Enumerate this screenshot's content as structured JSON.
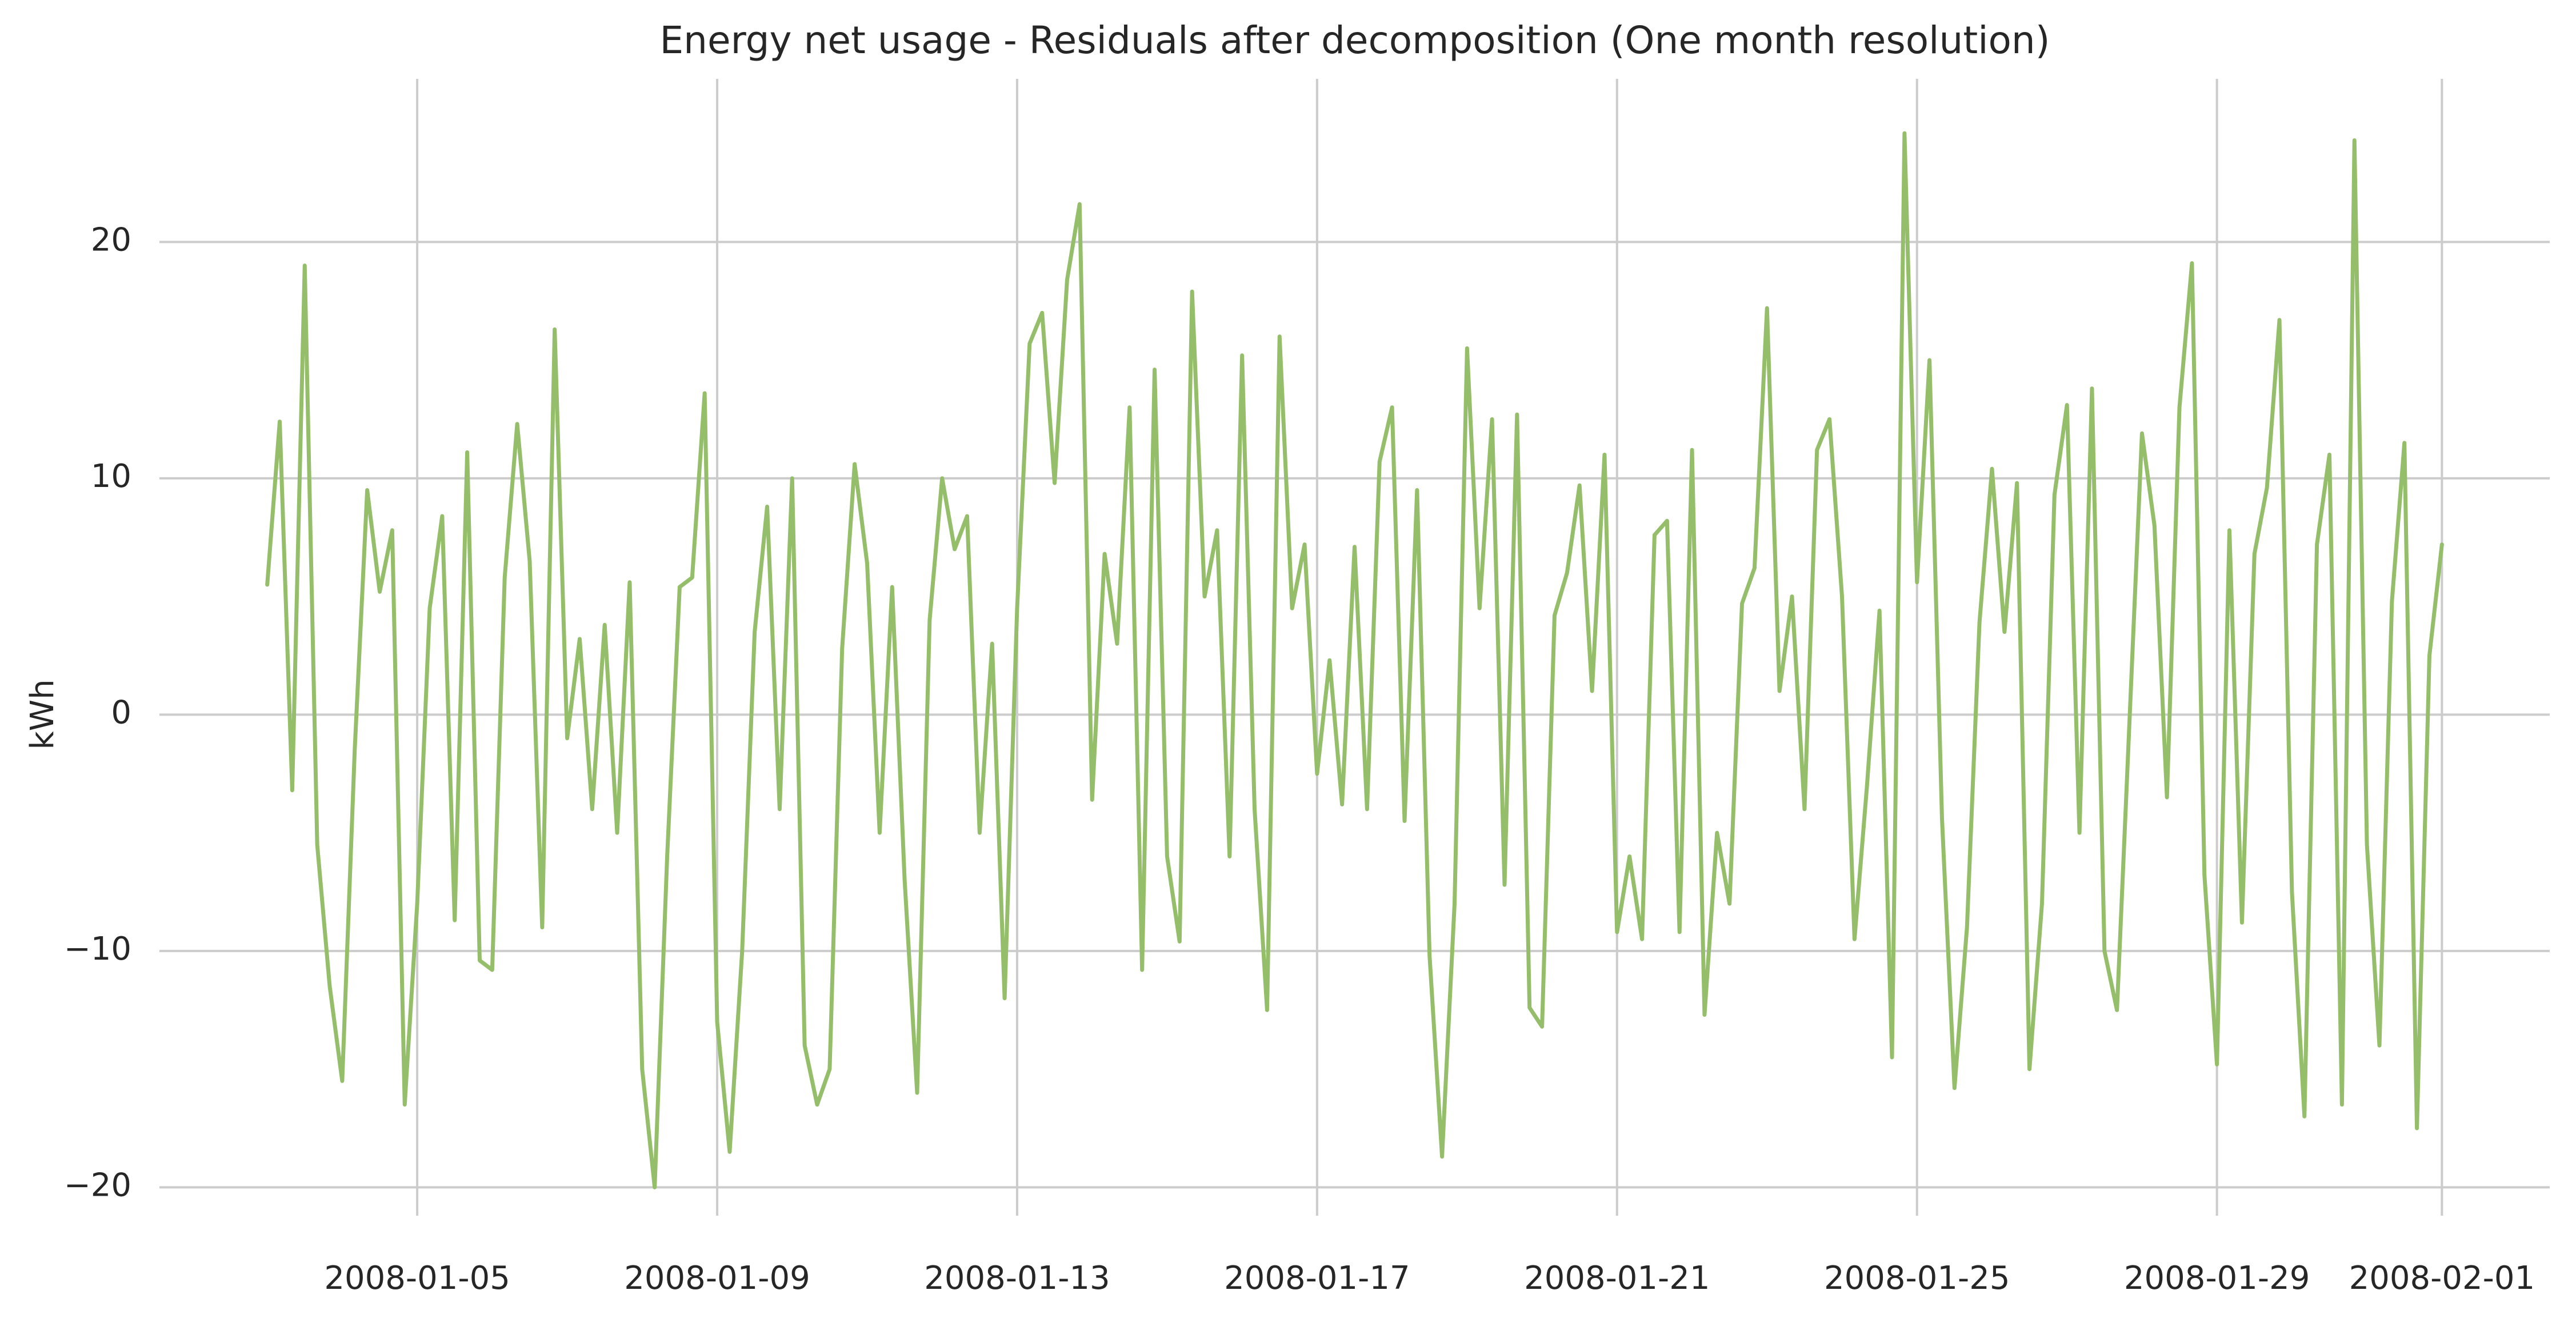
{
  "chart_data": {
    "type": "line",
    "title": "Energy net usage - Residuals after decomposition (One month resolution)",
    "y_label": "kWh",
    "color": "#95be6b",
    "grid": true,
    "xlim": [
      "2008-01-01T13:30",
      "2008-02-02T10:30"
    ],
    "xticks": [
      "2008-01-05",
      "2008-01-09",
      "2008-01-13",
      "2008-01-17",
      "2008-01-21",
      "2008-01-25",
      "2008-01-29",
      "2008-02-01"
    ],
    "ylim": [
      -21.2,
      26.9
    ],
    "yticks": [
      {
        "value": -20,
        "label": "−20"
      },
      {
        "value": -10,
        "label": "−10"
      },
      0,
      10,
      20
    ],
    "x": [
      "2008-01-03T00:00",
      "2008-01-03T04:00",
      "2008-01-03T08:00",
      "2008-01-03T12:00",
      "2008-01-03T16:00",
      "2008-01-03T20:00",
      "2008-01-04T00:00",
      "2008-01-04T04:00",
      "2008-01-04T08:00",
      "2008-01-04T12:00",
      "2008-01-04T16:00",
      "2008-01-04T20:00",
      "2008-01-05T00:00",
      "2008-01-05T04:00",
      "2008-01-05T08:00",
      "2008-01-05T12:00",
      "2008-01-05T16:00",
      "2008-01-05T20:00",
      "2008-01-06T00:00",
      "2008-01-06T04:00",
      "2008-01-06T08:00",
      "2008-01-06T12:00",
      "2008-01-06T16:00",
      "2008-01-06T20:00",
      "2008-01-07T00:00",
      "2008-01-07T04:00",
      "2008-01-07T08:00",
      "2008-01-07T12:00",
      "2008-01-07T16:00",
      "2008-01-07T20:00",
      "2008-01-08T00:00",
      "2008-01-08T04:00",
      "2008-01-08T08:00",
      "2008-01-08T12:00",
      "2008-01-08T16:00",
      "2008-01-08T20:00",
      "2008-01-09T00:00",
      "2008-01-09T04:00",
      "2008-01-09T08:00",
      "2008-01-09T12:00",
      "2008-01-09T16:00",
      "2008-01-09T20:00",
      "2008-01-10T00:00",
      "2008-01-10T04:00",
      "2008-01-10T08:00",
      "2008-01-10T12:00",
      "2008-01-10T16:00",
      "2008-01-10T20:00",
      "2008-01-11T00:00",
      "2008-01-11T04:00",
      "2008-01-11T08:00",
      "2008-01-11T12:00",
      "2008-01-11T16:00",
      "2008-01-11T20:00",
      "2008-01-12T00:00",
      "2008-01-12T04:00",
      "2008-01-12T08:00",
      "2008-01-12T12:00",
      "2008-01-12T16:00",
      "2008-01-12T20:00",
      "2008-01-13T00:00",
      "2008-01-13T04:00",
      "2008-01-13T08:00",
      "2008-01-13T12:00",
      "2008-01-13T16:00",
      "2008-01-13T20:00",
      "2008-01-14T00:00",
      "2008-01-14T04:00",
      "2008-01-14T08:00",
      "2008-01-14T12:00",
      "2008-01-14T16:00",
      "2008-01-14T20:00",
      "2008-01-15T00:00",
      "2008-01-15T04:00",
      "2008-01-15T08:00",
      "2008-01-15T12:00",
      "2008-01-15T16:00",
      "2008-01-15T20:00",
      "2008-01-16T00:00",
      "2008-01-16T04:00",
      "2008-01-16T08:00",
      "2008-01-16T12:00",
      "2008-01-16T16:00",
      "2008-01-16T20:00",
      "2008-01-17T00:00",
      "2008-01-17T04:00",
      "2008-01-17T08:00",
      "2008-01-17T12:00",
      "2008-01-17T16:00",
      "2008-01-17T20:00",
      "2008-01-18T00:00",
      "2008-01-18T04:00",
      "2008-01-18T08:00",
      "2008-01-18T12:00",
      "2008-01-18T16:00",
      "2008-01-18T20:00",
      "2008-01-19T00:00",
      "2008-01-19T04:00",
      "2008-01-19T08:00",
      "2008-01-19T12:00",
      "2008-01-19T16:00",
      "2008-01-19T20:00",
      "2008-01-20T00:00",
      "2008-01-20T04:00",
      "2008-01-20T08:00",
      "2008-01-20T12:00",
      "2008-01-20T16:00",
      "2008-01-20T20:00",
      "2008-01-21T00:00",
      "2008-01-21T04:00",
      "2008-01-21T08:00",
      "2008-01-21T12:00",
      "2008-01-21T16:00",
      "2008-01-21T20:00",
      "2008-01-22T00:00",
      "2008-01-22T04:00",
      "2008-01-22T08:00",
      "2008-01-22T12:00",
      "2008-01-22T16:00",
      "2008-01-22T20:00",
      "2008-01-23T00:00",
      "2008-01-23T04:00",
      "2008-01-23T08:00",
      "2008-01-23T12:00",
      "2008-01-23T16:00",
      "2008-01-23T20:00",
      "2008-01-24T00:00",
      "2008-01-24T04:00",
      "2008-01-24T08:00",
      "2008-01-24T12:00",
      "2008-01-24T16:00",
      "2008-01-24T20:00",
      "2008-01-25T00:00",
      "2008-01-25T04:00",
      "2008-01-25T08:00",
      "2008-01-25T12:00",
      "2008-01-25T16:00",
      "2008-01-25T20:00",
      "2008-01-26T00:00",
      "2008-01-26T04:00",
      "2008-01-26T08:00",
      "2008-01-26T12:00",
      "2008-01-26T16:00",
      "2008-01-26T20:00",
      "2008-01-27T00:00",
      "2008-01-27T04:00",
      "2008-01-27T08:00",
      "2008-01-27T12:00",
      "2008-01-27T16:00",
      "2008-01-27T20:00",
      "2008-01-28T00:00",
      "2008-01-28T04:00",
      "2008-01-28T08:00",
      "2008-01-28T12:00",
      "2008-01-28T16:00",
      "2008-01-28T20:00",
      "2008-01-29T00:00",
      "2008-01-29T04:00",
      "2008-01-29T08:00",
      "2008-01-29T12:00",
      "2008-01-29T16:00",
      "2008-01-29T20:00",
      "2008-01-30T00:00",
      "2008-01-30T04:00",
      "2008-01-30T08:00",
      "2008-01-30T12:00",
      "2008-01-30T16:00",
      "2008-01-30T20:00",
      "2008-01-31T00:00",
      "2008-01-31T04:00",
      "2008-01-31T08:00",
      "2008-01-31T12:00",
      "2008-01-31T16:00",
      "2008-01-31T20:00",
      "2008-02-01T00:00"
    ],
    "values": [
      5.5,
      12.4,
      -3.2,
      19,
      -5.5,
      -11.5,
      -15.5,
      -1.5,
      9.5,
      5.2,
      7.8,
      -16.5,
      -8,
      4.5,
      8.4,
      -8.7,
      11.1,
      -10.4,
      -10.8,
      5.8,
      12.3,
      6.5,
      -9,
      16.3,
      -1,
      3.2,
      -4,
      3.8,
      -5,
      5.6,
      -15,
      -20,
      -6,
      5.4,
      5.8,
      13.6,
      -13,
      -18.5,
      -10,
      3.5,
      8.8,
      -4,
      10,
      -14,
      -16.5,
      -15,
      2.8,
      10.6,
      6.4,
      -5,
      5.4,
      -7,
      -16,
      4,
      10,
      7,
      8.4,
      -5,
      3,
      -12,
      4.5,
      15.7,
      17,
      9.8,
      18.4,
      21.6,
      -3.6,
      6.8,
      3,
      13,
      -10.8,
      14.6,
      -6,
      -9.6,
      17.9,
      5,
      7.8,
      -6,
      15.2,
      -4,
      -12.5,
      16,
      4.5,
      7.2,
      -2.5,
      2.3,
      -3.8,
      7.1,
      -4,
      10.7,
      13,
      -4.5,
      9.5,
      -10.2,
      -18.7,
      -8,
      15.5,
      4.5,
      12.5,
      -7.2,
      12.7,
      -12.4,
      -13.2,
      4.2,
      6,
      9.7,
      1,
      11,
      -9.2,
      -6,
      -9.5,
      7.6,
      8.2,
      -9.2,
      11.2,
      -12.7,
      -5,
      -8,
      4.7,
      6.2,
      17.2,
      1,
      5,
      -4,
      11.2,
      12.5,
      5,
      -9.5,
      -3,
      4.4,
      -14.5,
      24.6,
      5.6,
      15,
      -4.4,
      -15.8,
      -9,
      3.9,
      10.4,
      3.5,
      9.8,
      -15,
      -8,
      9.3,
      13.1,
      -5,
      13.8,
      -10,
      -12.5,
      -0.3,
      11.9,
      8,
      -3.5,
      13,
      19.1,
      -6.8,
      -14.8,
      7.8,
      -8.8,
      6.8,
      9.6,
      16.7,
      -7.5,
      -17,
      7.2,
      11,
      -16.5,
      24.3,
      -5.5,
      -14,
      4.8,
      11.5,
      -17.5,
      2.5,
      7.2
    ]
  }
}
